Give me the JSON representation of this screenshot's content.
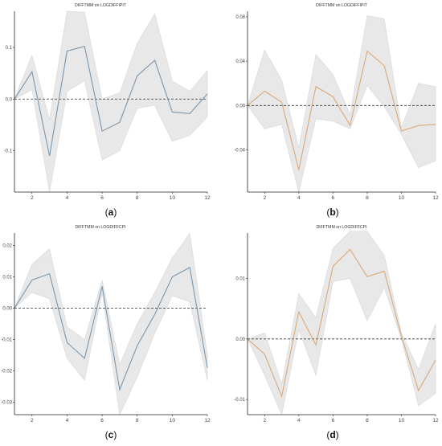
{
  "colors": {
    "band": "#e8e8e8",
    "band_edge": "#d6d6d6",
    "blue": "#7b96ad",
    "orange": "#d9a877",
    "zero": "#333333"
  },
  "chart_data": [
    {
      "id": "a",
      "type": "line",
      "title": "DIFFTMM on LOGDIFFIPIT",
      "caption_letter": "a",
      "x": [
        1,
        2,
        3,
        4,
        5,
        6,
        7,
        8,
        9,
        10,
        11,
        12
      ],
      "xticks": [
        2,
        4,
        6,
        8,
        10,
        12
      ],
      "xlim": [
        1,
        12
      ],
      "yticks": [
        -0.1,
        0.0,
        0.1
      ],
      "ytick_labels": [
        "-0.1",
        "0.0",
        "0.1"
      ],
      "ylim": [
        -0.18,
        0.17
      ],
      "series": [
        {
          "color_key": "blue",
          "values": [
            0.0,
            0.053,
            -0.11,
            0.093,
            0.102,
            -0.062,
            -0.045,
            0.045,
            0.075,
            -0.025,
            -0.028,
            0.01
          ],
          "upper": [
            0.0,
            0.085,
            -0.04,
            0.17,
            0.168,
            0.0,
            0.012,
            0.108,
            0.165,
            0.035,
            0.015,
            0.055
          ],
          "lower": [
            0.0,
            0.018,
            -0.18,
            0.015,
            0.035,
            -0.118,
            -0.1,
            -0.018,
            -0.012,
            -0.082,
            -0.07,
            -0.035
          ]
        }
      ]
    },
    {
      "id": "b",
      "type": "line",
      "title": "DIFFTMM on LOGDIFFIPIT",
      "caption_letter": "b",
      "x": [
        1,
        2,
        3,
        4,
        5,
        6,
        7,
        8,
        9,
        10,
        11,
        12
      ],
      "xticks": [
        2,
        4,
        6,
        8,
        10,
        12
      ],
      "xlim": [
        1,
        12
      ],
      "yticks": [
        -0.04,
        0.0,
        0.04,
        0.08
      ],
      "ytick_labels": [
        "-0.04",
        "0.00",
        "0.04",
        "0.08"
      ],
      "ylim": [
        -0.078,
        0.085
      ],
      "series": [
        {
          "color_key": "orange",
          "values": [
            0.0,
            0.013,
            0.003,
            -0.058,
            0.017,
            0.008,
            -0.018,
            0.049,
            0.036,
            -0.023,
            -0.018,
            -0.017
          ],
          "upper": [
            0.0,
            0.05,
            0.023,
            -0.038,
            0.046,
            0.028,
            -0.008,
            0.081,
            0.078,
            -0.02,
            0.02,
            0.017
          ],
          "lower": [
            0.0,
            -0.021,
            -0.017,
            -0.078,
            -0.012,
            -0.014,
            -0.021,
            0.018,
            -0.001,
            -0.026,
            -0.056,
            -0.05
          ]
        }
      ]
    },
    {
      "id": "c",
      "type": "line",
      "title": "DIFFTMM on LOGDIFFCPI",
      "caption_letter": "c",
      "x": [
        1,
        2,
        3,
        4,
        5,
        6,
        7,
        8,
        9,
        10,
        11,
        12
      ],
      "xticks": [
        2,
        4,
        6,
        8,
        10,
        12
      ],
      "xlim": [
        1,
        12
      ],
      "yticks": [
        -0.03,
        -0.02,
        -0.01,
        0.0,
        0.01,
        0.02
      ],
      "ytick_labels": [
        "-0.03",
        "-0.02",
        "-0.01",
        "0.00",
        "0.01",
        "0.02"
      ],
      "ylim": [
        -0.034,
        0.024
      ],
      "series": [
        {
          "color_key": "blue",
          "values": [
            0.0,
            0.009,
            0.011,
            -0.011,
            -0.016,
            0.007,
            -0.026,
            -0.012,
            -0.002,
            0.01,
            0.013,
            -0.019
          ],
          "upper": [
            0.0,
            0.014,
            0.019,
            -0.006,
            -0.01,
            0.009,
            -0.018,
            -0.005,
            0.005,
            0.016,
            0.024,
            -0.015
          ],
          "lower": [
            0.0,
            0.005,
            0.003,
            -0.016,
            -0.023,
            0.005,
            -0.034,
            -0.022,
            -0.008,
            0.004,
            0.002,
            -0.023
          ]
        }
      ]
    },
    {
      "id": "d",
      "type": "line",
      "title": "DIFFTMM on LOGDIFFCPI",
      "caption_letter": "d",
      "x": [
        1,
        2,
        3,
        4,
        5,
        6,
        7,
        8,
        9,
        10,
        11,
        12
      ],
      "xticks": [
        2,
        4,
        6,
        8,
        10,
        12
      ],
      "xlim": [
        1,
        12
      ],
      "yticks": [
        -0.01,
        0.0,
        0.01
      ],
      "ytick_labels": [
        "-0.01",
        "0.00",
        "0.01"
      ],
      "ylim": [
        -0.0125,
        0.0175
      ],
      "series": [
        {
          "color_key": "orange",
          "values": [
            0.0,
            -0.0025,
            -0.0095,
            0.0045,
            -0.001,
            0.012,
            0.0148,
            0.0103,
            0.0112,
            0.0005,
            -0.0085,
            -0.0035
          ],
          "upper": [
            0.0,
            0.001,
            -0.0075,
            0.0075,
            0.0035,
            0.015,
            0.0178,
            0.0178,
            0.0138,
            0.001,
            -0.005,
            0.0025
          ],
          "lower": [
            0.0,
            -0.006,
            -0.0125,
            0.0015,
            -0.006,
            0.0095,
            0.01,
            0.003,
            0.0085,
            0.0,
            -0.011,
            -0.009
          ]
        }
      ]
    }
  ]
}
